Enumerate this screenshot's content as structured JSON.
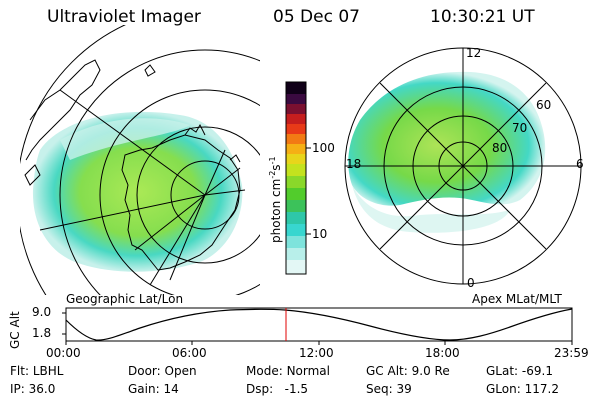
{
  "header": {
    "instrument": "Ultraviolet Imager",
    "date": "05 Dec 07",
    "time": "10:30:21 UT"
  },
  "colorbar": {
    "label": "photon cm",
    "label_sup1": "-2",
    "label_mid": "s",
    "label_sup2": "-1",
    "ticks": [
      "100",
      "10"
    ],
    "scale": "log"
  },
  "left_panel": {
    "caption": "Geographic Lat/Lon"
  },
  "right_panel": {
    "caption": "Apex MLat/MLT",
    "mlt_labels": {
      "top": "12",
      "left": "18",
      "right": "6",
      "bottom": "0"
    },
    "mlat_labels": [
      "60",
      "70",
      "80"
    ]
  },
  "altitude_plot": {
    "ylabel": "GC Alt",
    "yticks": [
      "9.0",
      "1.8"
    ],
    "xticks": [
      "00:00",
      "06:00",
      "12:00",
      "18:00",
      "23:59"
    ],
    "marker_time": "10:30",
    "marker_color": "#e00000"
  },
  "status": {
    "filter_label": "Flt:",
    "filter_value": "LBHL",
    "ip_label": "IP:",
    "ip_value": "36.0",
    "door_label": "Door:",
    "door_value": "Open",
    "gain_label": "Gain:",
    "gain_value": "14",
    "mode_label": "Mode:",
    "mode_value": "Normal",
    "dsp_label": "Dsp:",
    "dsp_value": "-1.5",
    "gcalt_label": "GC Alt:",
    "gcalt_value": "9.0 Re",
    "seq_label": "Seq:",
    "seq_value": "39",
    "glat_label": "GLat:",
    "glat_value": "-69.1",
    "glon_label": "GLon:",
    "glon_value": "117.2"
  },
  "colors": {
    "aurora_main": "#8be04a",
    "aurora_bright": "#4bd22a",
    "aurora_edge": "#3ad8c8",
    "aurora_faint": "#bff0ea"
  }
}
